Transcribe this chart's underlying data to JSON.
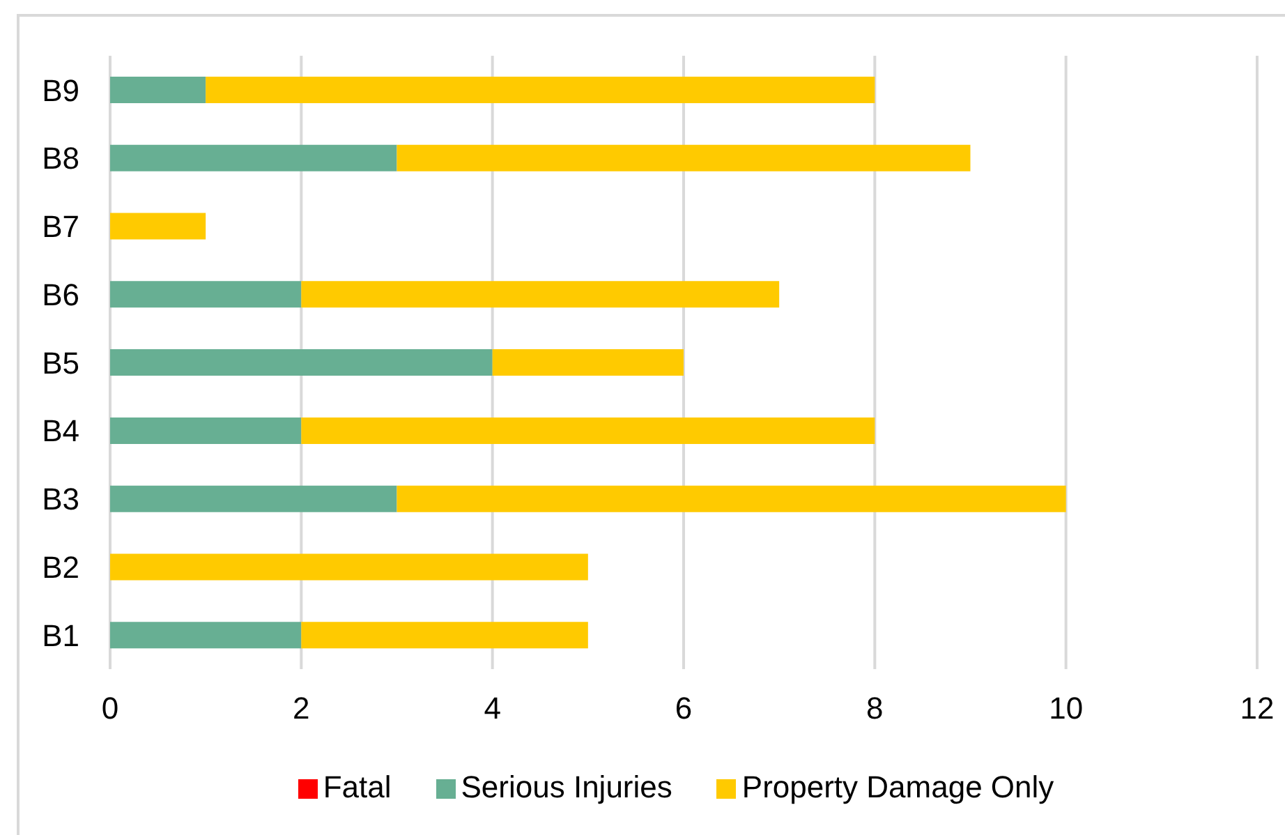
{
  "chart_data": {
    "type": "bar",
    "orientation": "horizontal",
    "stacked": true,
    "categories": [
      "B9",
      "B8",
      "B7",
      "B6",
      "B5",
      "B4",
      "B3",
      "B2",
      "B1"
    ],
    "series": [
      {
        "name": "Fatal",
        "color": "#ff0000",
        "values": [
          0,
          0,
          0,
          0,
          0,
          0,
          0,
          0,
          0
        ]
      },
      {
        "name": "Serious Injuries",
        "color": "#67af93",
        "values": [
          1,
          3,
          0,
          2,
          4,
          2,
          3,
          0,
          2
        ]
      },
      {
        "name": "Property Damage Only",
        "color": "#ffca00",
        "values": [
          7,
          6,
          1,
          5,
          2,
          6,
          7,
          5,
          3
        ]
      }
    ],
    "xlim": [
      0,
      12
    ],
    "xticks": [
      0,
      2,
      4,
      6,
      8,
      10,
      12
    ],
    "grid": "x",
    "legend": "bottom"
  }
}
